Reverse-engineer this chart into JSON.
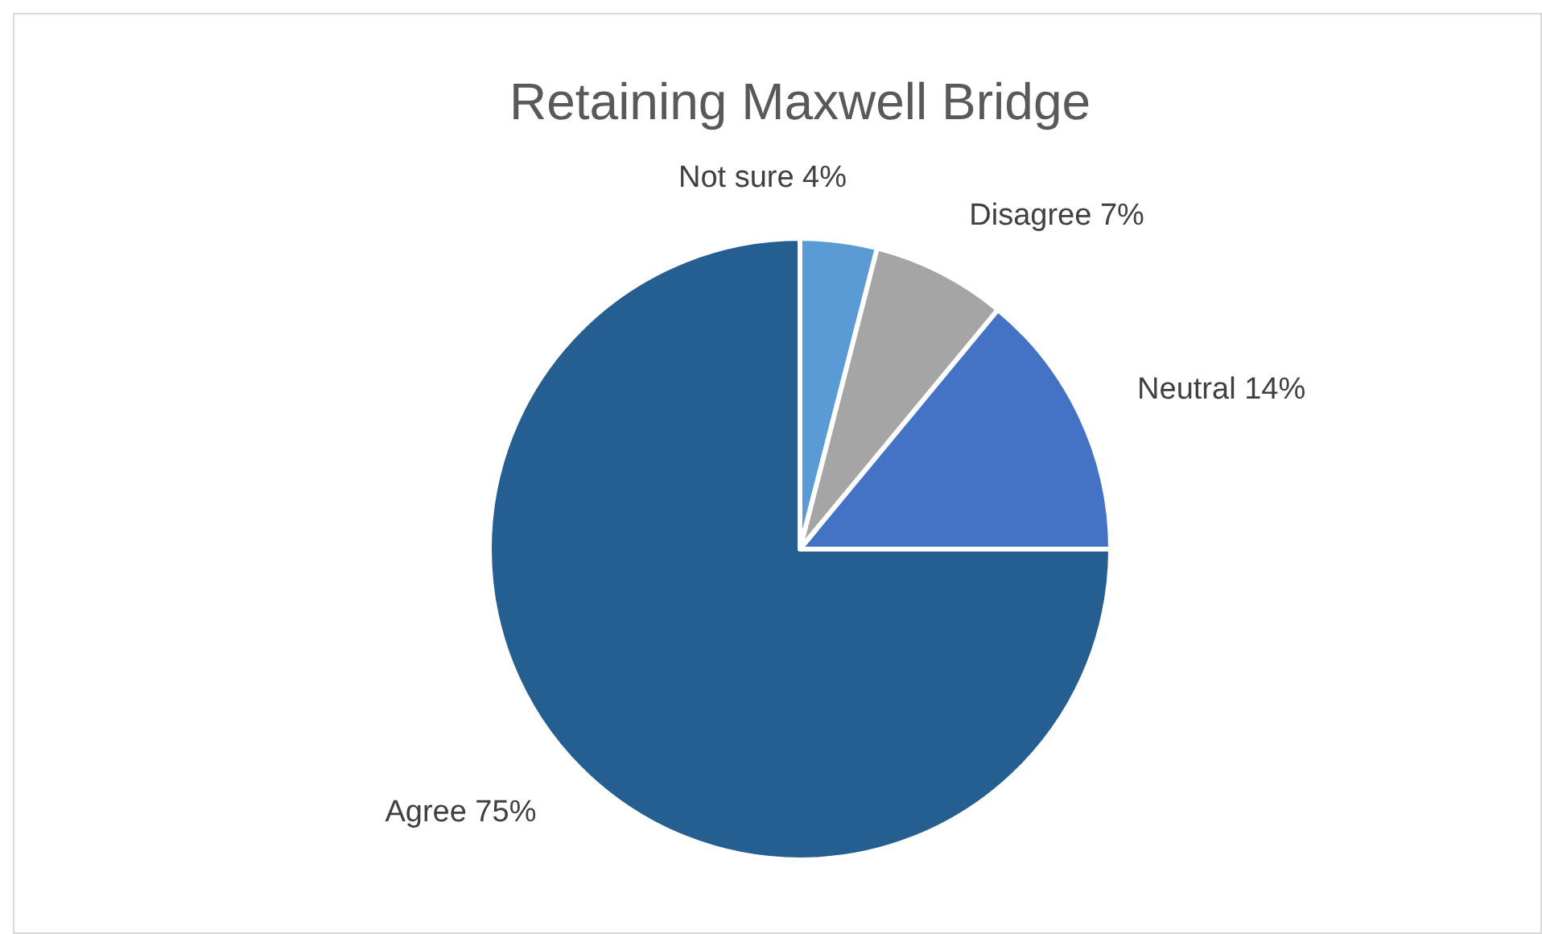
{
  "chart_data": {
    "type": "pie",
    "title": "Retaining Maxwell Bridge",
    "categories": [
      "Not sure",
      "Disagree",
      "Neutral",
      "Agree"
    ],
    "values": [
      4,
      7,
      14,
      75
    ],
    "colors": [
      "#5b9bd5",
      "#a5a5a5",
      "#4472c4",
      "#255e91"
    ],
    "value_labels": [
      "4%",
      "7%",
      "14%",
      "75%"
    ],
    "legend": false
  }
}
